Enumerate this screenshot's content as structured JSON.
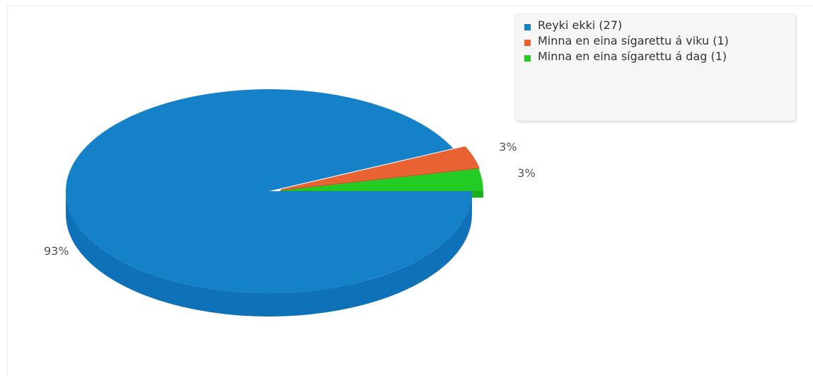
{
  "chart_data": {
    "type": "pie",
    "style": "3d",
    "slices": [
      {
        "name": "Reyki ekki",
        "count": 27,
        "percent": 93,
        "label": "93%",
        "color": "#1581c9",
        "side_color": "#0f72b8"
      },
      {
        "name": "Minna en eina sígarettu á viku",
        "count": 1,
        "percent": 3,
        "label": "3%",
        "color": "#e96232",
        "side_color": "#d35426"
      },
      {
        "name": "Minna en eina sígarettu á dag",
        "count": 1,
        "percent": 3,
        "label": "3%",
        "color": "#22cc22",
        "side_color": "#1aaf1a"
      }
    ],
    "legend": {
      "position": "top-right",
      "items": [
        {
          "text": "Reyki ekki (27)",
          "color": "#1581c9"
        },
        {
          "text": "Minna en eina sígarettu á viku (1)",
          "color": "#e96232"
        },
        {
          "text": "Minna en eina sígarettu á dag (1)",
          "color": "#22cc22"
        }
      ]
    }
  }
}
